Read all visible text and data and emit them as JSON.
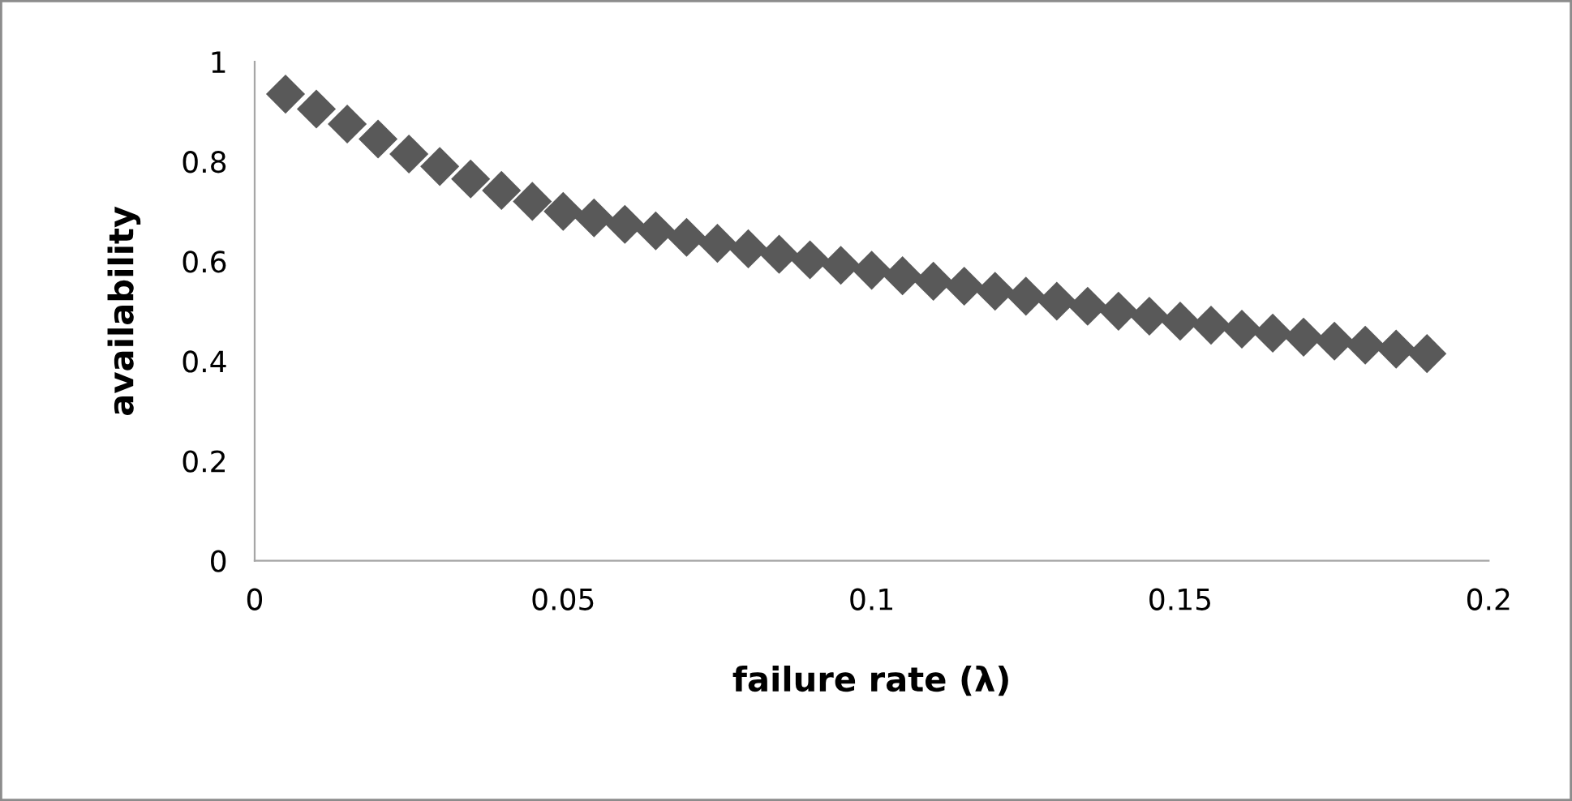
{
  "chart_data": {
    "type": "scatter",
    "xlabel": "failure rate (λ)",
    "ylabel": "availability",
    "x": [
      0.005,
      0.01,
      0.015,
      0.02,
      0.025,
      0.03,
      0.035,
      0.04,
      0.045,
      0.05,
      0.055,
      0.06,
      0.065,
      0.07,
      0.075,
      0.08,
      0.085,
      0.09,
      0.095,
      0.1,
      0.105,
      0.11,
      0.115,
      0.12,
      0.125,
      0.13,
      0.135,
      0.14,
      0.145,
      0.15,
      0.155,
      0.16,
      0.165,
      0.17,
      0.175,
      0.18,
      0.185,
      0.19
    ],
    "series": [
      {
        "color": "#595959",
        "values": [
          0.935,
          0.905,
          0.875,
          0.845,
          0.815,
          0.79,
          0.765,
          0.742,
          0.72,
          0.7,
          0.687,
          0.674,
          0.661,
          0.648,
          0.636,
          0.625,
          0.614,
          0.603,
          0.592,
          0.582,
          0.571,
          0.56,
          0.55,
          0.54,
          0.53,
          0.52,
          0.51,
          0.5,
          0.49,
          0.48,
          0.472,
          0.464,
          0.456,
          0.448,
          0.44,
          0.432,
          0.424,
          0.415
        ]
      }
    ],
    "marker": "diamond",
    "grid": false,
    "xlim": [
      0,
      0.2
    ],
    "xticks": [
      0,
      0.05,
      0.1,
      0.15,
      0.2
    ],
    "ylim": [
      0,
      1
    ],
    "yticks": [
      0,
      0.2,
      0.4,
      0.6,
      0.8,
      1
    ]
  }
}
